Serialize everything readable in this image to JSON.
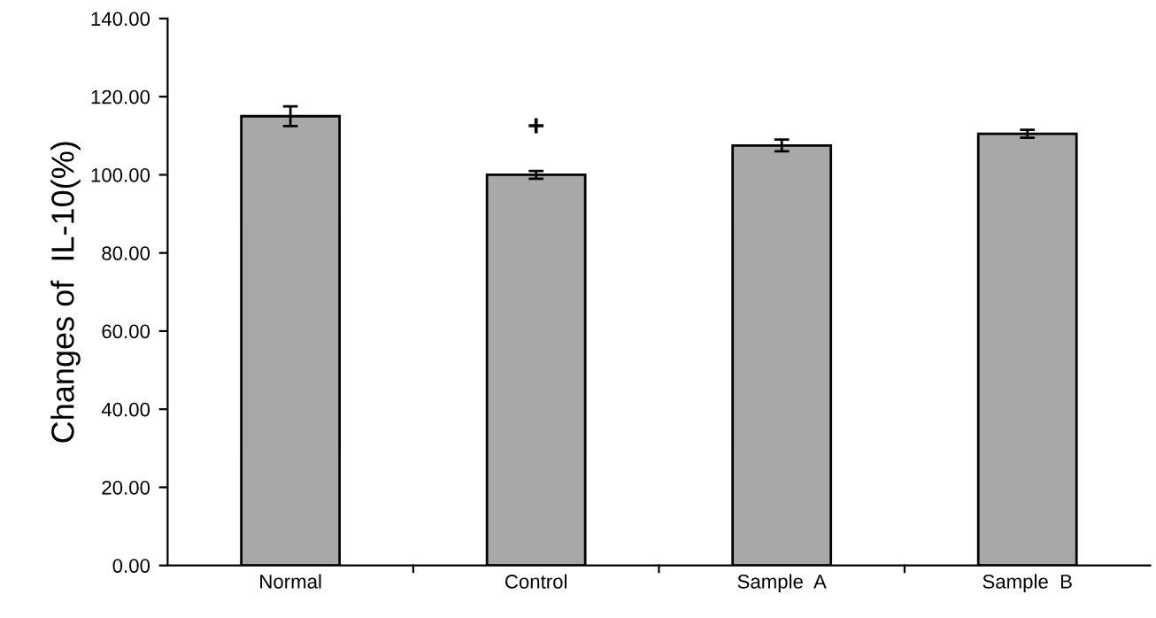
{
  "chart_data": {
    "type": "bar",
    "ylabel": "Changes of  IL-10(%)",
    "categories": [
      "Normal",
      "Control",
      "Sample  A",
      "Sample  B"
    ],
    "values": [
      115.0,
      100.0,
      107.5,
      110.5
    ],
    "errors": [
      2.5,
      1.0,
      1.5,
      1.0
    ],
    "color": "#a8a8a8",
    "ylim": [
      0,
      140
    ],
    "yticks": [
      {
        "value": 0,
        "label": "0.00"
      },
      {
        "value": 20,
        "label": "20.00"
      },
      {
        "value": 40,
        "label": "40.00"
      },
      {
        "value": 60,
        "label": "60.00"
      },
      {
        "value": 80,
        "label": "80.00"
      },
      {
        "value": 100,
        "label": "100.00"
      },
      {
        "value": 120,
        "label": "120.00"
      },
      {
        "value": 140,
        "label": "140.00"
      }
    ],
    "annotations": [
      "+"
    ],
    "grid": false,
    "legend": false
  }
}
